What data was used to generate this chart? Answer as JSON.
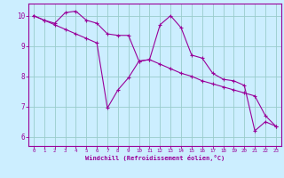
{
  "xlabel": "Windchill (Refroidissement éolien,°C)",
  "bg_color": "#cceeff",
  "line_color": "#990099",
  "grid_color": "#99cccc",
  "xlim": [
    -0.5,
    23.5
  ],
  "ylim": [
    5.7,
    10.4
  ],
  "xticks": [
    0,
    1,
    2,
    3,
    4,
    5,
    6,
    7,
    8,
    9,
    10,
    11,
    12,
    13,
    14,
    15,
    16,
    17,
    18,
    19,
    20,
    21,
    22,
    23
  ],
  "yticks": [
    6,
    7,
    8,
    9,
    10
  ],
  "line1_x": [
    0,
    1,
    2,
    3,
    4,
    5,
    6,
    7,
    8,
    9,
    10,
    11,
    12,
    13,
    14,
    15,
    16,
    17,
    18,
    19,
    20,
    21,
    22,
    23
  ],
  "line1_y": [
    10.0,
    9.85,
    9.75,
    10.1,
    10.15,
    9.85,
    9.75,
    9.4,
    9.35,
    9.35,
    8.5,
    8.55,
    9.7,
    10.0,
    9.6,
    8.7,
    8.6,
    8.1,
    7.9,
    7.85,
    7.7,
    6.2,
    6.5,
    6.35
  ],
  "line2_x": [
    0,
    1,
    2,
    3,
    4,
    5,
    6,
    7,
    8,
    9,
    10,
    11,
    12,
    13,
    14,
    15,
    16,
    17,
    18,
    19,
    20,
    21,
    22,
    23
  ],
  "line2_y": [
    10.0,
    9.85,
    9.7,
    9.55,
    9.4,
    9.25,
    9.1,
    6.95,
    7.55,
    7.95,
    8.5,
    8.55,
    8.4,
    8.25,
    8.1,
    8.0,
    7.85,
    7.75,
    7.65,
    7.55,
    7.45,
    7.35,
    6.7,
    6.35
  ]
}
